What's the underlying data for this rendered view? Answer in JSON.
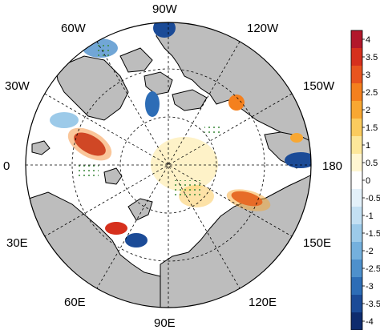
{
  "map": {
    "projection": "north-polar-stereographic",
    "longitude_labels": [
      "90W",
      "120W",
      "150W",
      "180",
      "150E",
      "120E",
      "90E",
      "60E",
      "30E",
      "0",
      "30W",
      "60W"
    ],
    "land_color": "#bdbdbd",
    "ocean_color": "#ffffff"
  },
  "colorbar": {
    "tick_labels": [
      "4",
      "3.5",
      "3",
      "2.5",
      "2",
      "1.5",
      "1",
      "0.5",
      "0",
      "-0.5",
      "-1",
      "-1.5",
      "-2",
      "-2.5",
      "-3",
      "-3.5",
      "-4"
    ],
    "colors": [
      "#b2182b",
      "#d6301d",
      "#e8551f",
      "#f4801e",
      "#f8a732",
      "#fbcb5e",
      "#fde79a",
      "#fff6d2",
      "#ffffff",
      "#e3f1fa",
      "#c3e0f3",
      "#9ccae9",
      "#74b0dd",
      "#4e90cc",
      "#2d6db6",
      "#1b4b97",
      "#0e2c6e"
    ]
  }
}
